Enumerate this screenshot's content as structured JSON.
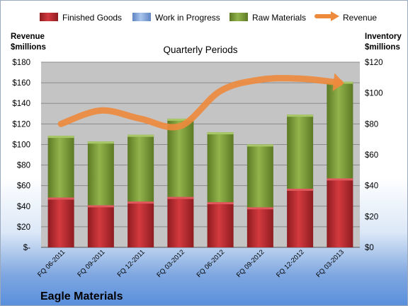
{
  "company": "Eagle Materials",
  "colors": {
    "finished_goods": "#c0282d",
    "work_in_progress": "#8fb0e0",
    "raw_materials": "#7d9d3a",
    "revenue": "#ee8a3c",
    "plot_bg": "#c4c4c4"
  },
  "chart_data": {
    "type": "bar",
    "subtitle": "Quarterly Periods",
    "left_axis_title": [
      "Revenue",
      "$millions"
    ],
    "right_axis_title": [
      "Inventory",
      "$millions"
    ],
    "left_ticks": [
      "$-",
      "$20",
      "$40",
      "$60",
      "$80",
      "$100",
      "$120",
      "$140",
      "$160",
      "$180"
    ],
    "right_ticks": [
      "$0",
      "$20",
      "$40",
      "$60",
      "$80",
      "$100",
      "$120"
    ],
    "left_range": [
      0,
      180
    ],
    "right_range": [
      0,
      120
    ],
    "grid": true,
    "legend_position": "top",
    "categories": [
      "FQ 06-2011",
      "FQ 09-2011",
      "FQ 12-2011",
      "FQ 03-2012",
      "FQ 06-2012",
      "FQ 09-2012",
      "FQ 12-2012",
      "FQ 03-2013"
    ],
    "series": [
      {
        "name": "Finished Goods",
        "axis": "right",
        "stacked": true,
        "values": [
          32.3,
          27.3,
          29.7,
          32.7,
          29.3,
          26.0,
          38.0,
          44.7
        ]
      },
      {
        "name": "Work in Progress",
        "axis": "right",
        "stacked": true,
        "values": [
          0,
          0,
          0,
          0,
          0,
          0,
          0,
          0
        ]
      },
      {
        "name": "Raw Materials",
        "axis": "right",
        "stacked": true,
        "values": [
          40.0,
          41.3,
          43.3,
          50.7,
          45.3,
          40.7,
          48.0,
          62.7
        ]
      },
      {
        "name": "Revenue",
        "axis": "left",
        "type": "line",
        "values": [
          120,
          133,
          125,
          118,
          152,
          163,
          164,
          160
        ]
      }
    ]
  }
}
